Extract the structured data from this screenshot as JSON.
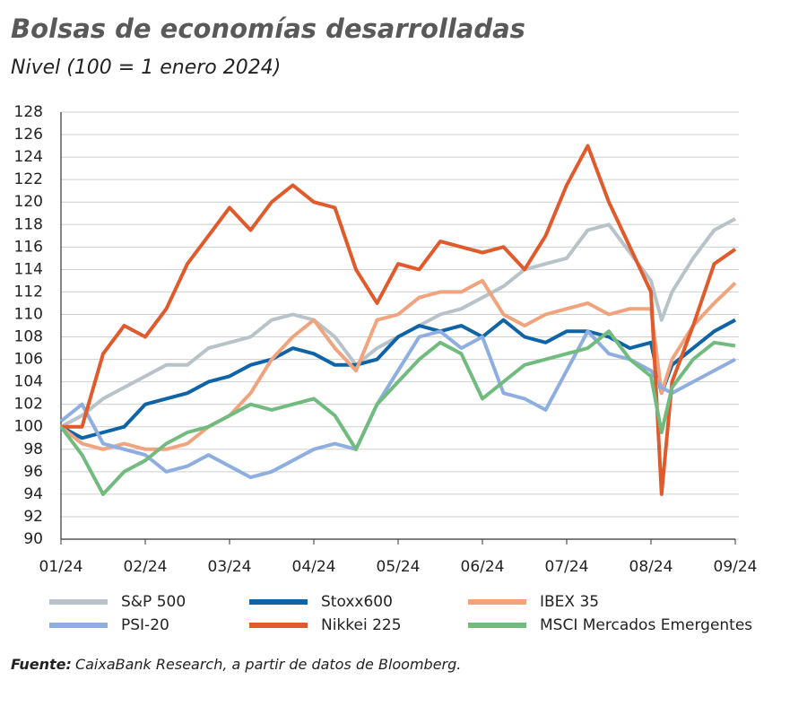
{
  "chart_data": {
    "type": "line",
    "title": "Bolsas de economías desarrolladas",
    "subtitle": "Nivel (100 = 1 enero 2024)",
    "source_label": "Fuente:",
    "source": "CaixaBank Research, a partir de datos de Bloomberg.",
    "x": [
      0,
      0.25,
      0.5,
      0.75,
      1,
      1.25,
      1.5,
      1.75,
      2,
      2.25,
      2.5,
      2.75,
      3,
      3.25,
      3.5,
      3.75,
      4,
      4.25,
      4.5,
      4.75,
      5,
      5.25,
      5.5,
      5.75,
      6,
      6.25,
      6.5,
      6.75,
      7,
      7.125,
      7.25,
      7.5,
      7.75,
      8
    ],
    "xlim": [
      0,
      8
    ],
    "xticks": [
      {
        "value": 0,
        "label": "01/24"
      },
      {
        "value": 1,
        "label": "02/24"
      },
      {
        "value": 2,
        "label": "03/24"
      },
      {
        "value": 3,
        "label": "04/24"
      },
      {
        "value": 4,
        "label": "05/24"
      },
      {
        "value": 5,
        "label": "06/24"
      },
      {
        "value": 6,
        "label": "07/24"
      },
      {
        "value": 7,
        "label": "08/24"
      },
      {
        "value": 8,
        "label": "09/24"
      }
    ],
    "ylim": [
      90,
      128
    ],
    "yticks": [
      90,
      92,
      94,
      96,
      98,
      100,
      102,
      104,
      106,
      108,
      110,
      112,
      114,
      116,
      118,
      120,
      122,
      124,
      126,
      128
    ],
    "grid": true,
    "series": [
      {
        "name": "S&P 500",
        "color": "#b7c3c8",
        "values": [
          100,
          101,
          102.5,
          103.5,
          104.5,
          105.5,
          105.5,
          107,
          107.5,
          108,
          109.5,
          110,
          109.5,
          108,
          105.5,
          107,
          108,
          109,
          110,
          110.5,
          111.5,
          112.5,
          114,
          114.5,
          115,
          117.5,
          118,
          115.5,
          113,
          109.5,
          112,
          115,
          117.5,
          118.5
        ]
      },
      {
        "name": "Stoxx600",
        "color": "#0e64a6",
        "values": [
          100,
          99,
          99.5,
          100,
          102,
          102.5,
          103,
          104,
          104.5,
          105.5,
          106,
          107,
          106.5,
          105.5,
          105.5,
          106,
          108,
          109,
          108.5,
          109,
          108,
          109.5,
          108,
          107.5,
          108.5,
          108.5,
          108,
          107,
          107.5,
          103,
          105.5,
          107,
          108.5,
          109.5
        ]
      },
      {
        "name": "IBEX 35",
        "color": "#f0a37d",
        "values": [
          100,
          98.5,
          98,
          98.5,
          98,
          98,
          98.5,
          100,
          101,
          103,
          106,
          108,
          109.5,
          107,
          105,
          109.5,
          110,
          111.5,
          112,
          112,
          113,
          110,
          109,
          110,
          110.5,
          111,
          110,
          110.5,
          110.5,
          103,
          106,
          109,
          111,
          112.8
        ]
      },
      {
        "name": "PSI-20",
        "color": "#8faee0",
        "values": [
          100.5,
          102,
          98.5,
          98,
          97.5,
          96,
          96.5,
          97.5,
          96.5,
          95.5,
          96,
          97,
          98,
          98.5,
          98,
          102,
          105,
          108,
          108.5,
          107,
          108,
          103,
          102.5,
          101.5,
          105,
          108.5,
          106.5,
          106,
          105,
          103.5,
          103,
          104,
          105,
          106
        ]
      },
      {
        "name": "Nikkei 225",
        "color": "#e05a2b",
        "values": [
          100,
          100,
          106.5,
          109,
          108,
          110.5,
          114.5,
          117,
          119.5,
          117.5,
          120,
          121.5,
          120,
          119.5,
          114,
          111,
          114.5,
          114,
          116.5,
          116,
          115.5,
          116,
          114,
          117,
          121.5,
          125,
          120,
          116,
          112,
          94,
          104,
          109,
          114.5,
          115.8
        ]
      },
      {
        "name": "MSCI Mercados Emergentes",
        "color": "#72bb7f",
        "values": [
          100,
          97.5,
          94,
          96,
          97,
          98.5,
          99.5,
          100,
          101,
          102,
          101.5,
          102,
          102.5,
          101,
          98,
          102,
          104,
          106,
          107.5,
          106.5,
          102.5,
          104,
          105.5,
          106,
          106.5,
          107,
          108.5,
          106,
          104.5,
          99.5,
          103.5,
          106,
          107.5,
          107.2
        ]
      }
    ]
  }
}
